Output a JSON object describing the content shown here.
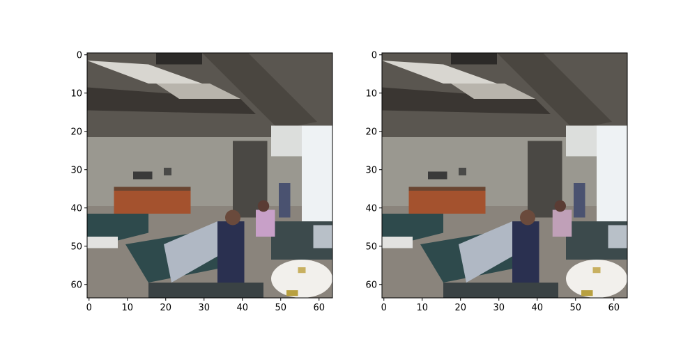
{
  "chart_data": [
    {
      "type": "heatmap",
      "title": "",
      "xlabel": "",
      "ylabel": "",
      "xlim": [
        0,
        63
      ],
      "ylim": [
        63,
        0
      ],
      "x_ticks": [
        0,
        10,
        20,
        30,
        40,
        50,
        60
      ],
      "y_ticks": [
        0,
        10,
        20,
        30,
        40,
        50,
        60
      ],
      "grid": false,
      "content": "64x64 pixelated photo of an indoor lobby (ceiling beams, counter, people, sofas, round table)",
      "palette": {
        "ceiling": "#5a5650",
        "beam": "#3a3632",
        "light": "#d8d6d0",
        "window": "#eef2f4",
        "wall": "#9a9890",
        "counter": "#a4522e",
        "sofa": "#2e4a4c",
        "person_dark": "#2a3050",
        "person_pink": "#c8a0c8",
        "table": "#f2f0ec",
        "floor": "#8a847c",
        "column": "#4a4844"
      }
    },
    {
      "type": "heatmap",
      "title": "",
      "xlabel": "",
      "ylabel": "",
      "xlim": [
        0,
        63
      ],
      "ylim": [
        63,
        0
      ],
      "x_ticks": [
        0,
        10,
        20,
        30,
        40,
        50,
        60
      ],
      "y_ticks": [
        0,
        10,
        20,
        30,
        40,
        50,
        60
      ],
      "grid": false,
      "content": "same 64x64 pixelated lobby photo, slightly varied reconstruction",
      "palette": {
        "ceiling": "#5a5650",
        "beam": "#3a3632",
        "light": "#d8d6d0",
        "window": "#eef2f4",
        "wall": "#9a9890",
        "counter": "#a4522e",
        "sofa": "#2e4a4c",
        "person_dark": "#2a3050",
        "person_pink": "#c0a0b8",
        "table": "#f2f0ec",
        "floor": "#8a847c",
        "column": "#4a4844"
      }
    }
  ]
}
